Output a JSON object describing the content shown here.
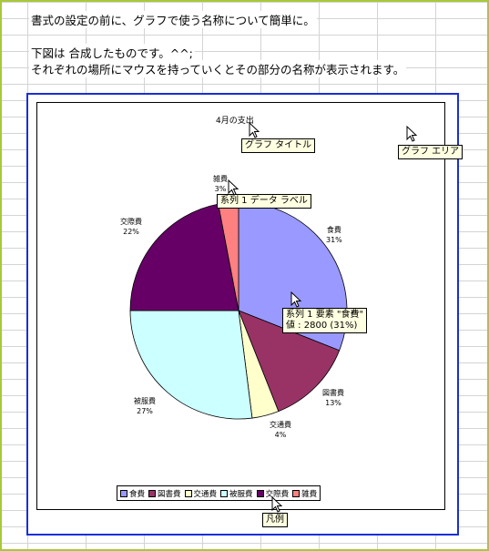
{
  "text": {
    "line1": "書式の設定の前に、グラフで使う名称について簡単に。",
    "line2": "下図は 合成したものです。^^;",
    "line3": "それぞれの場所にマウスを持っていくとその部分の名称が表示されます。"
  },
  "tooltips": {
    "chart_title": "グラフ タイトル",
    "chart_area": "グラフ エリア",
    "data_label": "系列 1 データ ラベル",
    "element_line1": "系列 1 要素 \"食費\"",
    "element_line2": "値 : 2800 (31%)",
    "legend": "凡例"
  },
  "chart_data": {
    "type": "pie",
    "title": "4月の支出",
    "categories": [
      "食費",
      "図書費",
      "交通費",
      "被服費",
      "交際費",
      "雑費"
    ],
    "percent_labels": [
      "31%",
      "13%",
      "4%",
      "27%",
      "22%",
      "3%"
    ],
    "values": [
      31,
      13,
      4,
      27,
      22,
      3
    ],
    "colors": [
      "#9999ff",
      "#993366",
      "#ffffcc",
      "#ccffff",
      "#660066",
      "#ff8080"
    ],
    "legend_placement": "bottom"
  }
}
